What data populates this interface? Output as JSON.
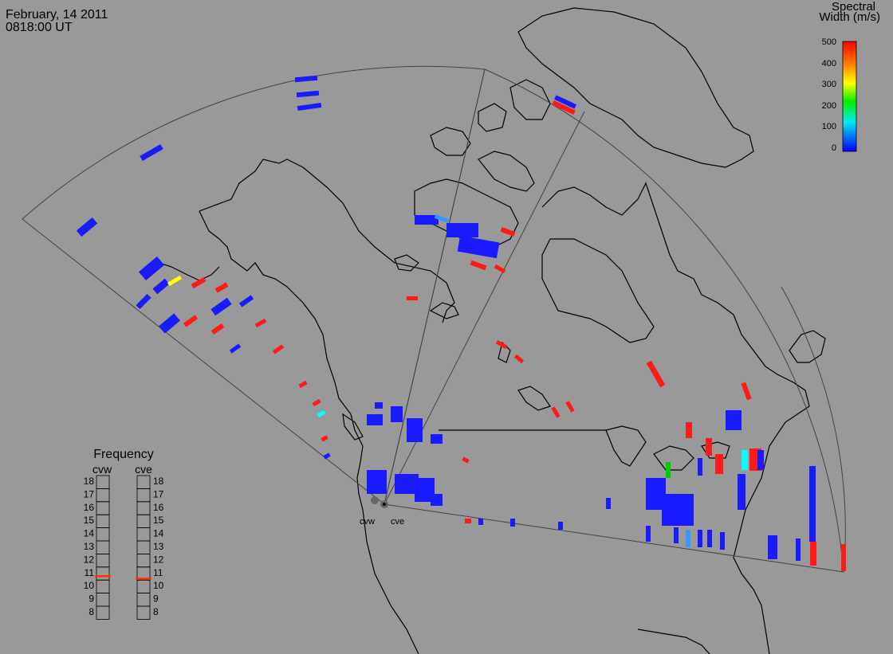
{
  "header": {
    "date": "February, 14 2011",
    "time": "0818:00 UT"
  },
  "colorbar": {
    "title_line1": "Spectral",
    "title_line2": "Width (m/s)",
    "ticks": [
      "500",
      "400",
      "300",
      "200",
      "100",
      "0"
    ],
    "colors": [
      "#ff0000",
      "#ffaa00",
      "#ffff00",
      "#00ee00",
      "#00eeee",
      "#0000ff"
    ]
  },
  "frequency": {
    "title": "Frequency",
    "radars": [
      "cvw",
      "cve"
    ],
    "levels": [
      "18",
      "17",
      "16",
      "15",
      "14",
      "13",
      "12",
      "11",
      "10",
      "9",
      "8"
    ],
    "cvw_mhz": 10.8,
    "cve_mhz": 10.6,
    "marker_color": "#ff3300"
  },
  "radar_sites": [
    "cvw",
    "cve"
  ],
  "colors": {
    "background": "#999999",
    "low_width": "#1a1aff",
    "high_width": "#ff1a1a"
  }
}
